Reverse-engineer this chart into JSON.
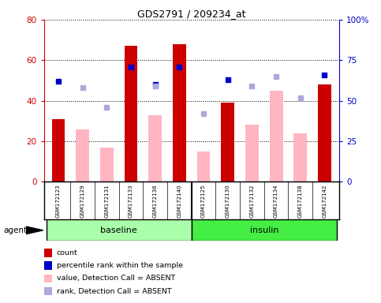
{
  "title": "GDS2791 / 209234_at",
  "samples": [
    "GSM172123",
    "GSM172129",
    "GSM172131",
    "GSM172133",
    "GSM172136",
    "GSM172140",
    "GSM172125",
    "GSM172130",
    "GSM172132",
    "GSM172134",
    "GSM172138",
    "GSM172142"
  ],
  "groups": [
    {
      "label": "baseline",
      "color": "#AAFFAA",
      "indices": [
        0,
        1,
        2,
        3,
        4,
        5
      ]
    },
    {
      "label": "insulin",
      "color": "#44EE44",
      "indices": [
        6,
        7,
        8,
        9,
        10,
        11
      ]
    }
  ],
  "count_values": [
    31,
    null,
    null,
    67,
    null,
    68,
    null,
    39,
    null,
    null,
    null,
    48
  ],
  "percentile_values": [
    62,
    null,
    null,
    71,
    60,
    71,
    null,
    63,
    null,
    null,
    null,
    66
  ],
  "absent_value_bars": [
    null,
    26,
    17,
    null,
    33,
    null,
    15,
    null,
    28,
    45,
    24,
    null
  ],
  "absent_rank_dots": [
    null,
    58,
    46,
    null,
    59,
    null,
    42,
    null,
    59,
    65,
    52,
    null
  ],
  "ylim_left": [
    0,
    80
  ],
  "ylim_right": [
    0,
    100
  ],
  "yticks_left": [
    0,
    20,
    40,
    60,
    80
  ],
  "yticks_right": [
    0,
    25,
    50,
    75,
    100
  ],
  "ytick_right_labels": [
    "0",
    "25",
    "50",
    "75",
    "100%"
  ],
  "left_axis_color": "#CC0000",
  "right_axis_color": "#0000CC",
  "bar_count_color": "#CC0000",
  "bar_absent_value_color": "#FFB6C1",
  "dot_percentile_color": "#0000CC",
  "dot_absent_rank_color": "#AAAADD",
  "background_color": "#ffffff",
  "plot_bg_color": "#ffffff",
  "tick_label_area_color": "#C8C8C8",
  "legend_items": [
    {
      "label": "count",
      "color": "#CC0000"
    },
    {
      "label": "percentile rank within the sample",
      "color": "#0000CC"
    },
    {
      "label": "value, Detection Call = ABSENT",
      "color": "#FFB6C1"
    },
    {
      "label": "rank, Detection Call = ABSENT",
      "color": "#AAAADD"
    }
  ],
  "figsize": [
    4.83,
    3.84
  ],
  "dpi": 100
}
